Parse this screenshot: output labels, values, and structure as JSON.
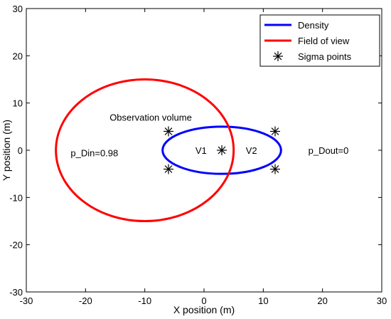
{
  "chart_data": {
    "type": "scatter",
    "title": "",
    "xlabel": "X position (m)",
    "ylabel": "Y position (m)",
    "xlim": [
      -30,
      30
    ],
    "ylim": [
      -30,
      30
    ],
    "xticks": [
      -30,
      -20,
      -10,
      0,
      10,
      20,
      30
    ],
    "yticks": [
      -30,
      -20,
      -10,
      0,
      10,
      20,
      30
    ],
    "grid": false,
    "legend_position": "top-right",
    "series": [
      {
        "name": "Density",
        "kind": "ellipse",
        "color": "#0000ff",
        "center": [
          3,
          0
        ],
        "radii": [
          10,
          5
        ]
      },
      {
        "name": "Field of view",
        "kind": "ellipse",
        "color": "#ff0000",
        "center": [
          -10,
          0
        ],
        "radii": [
          15,
          15
        ]
      },
      {
        "name": "Sigma points",
        "kind": "points",
        "color": "#000000",
        "marker": "asterisk",
        "points": [
          [
            -6,
            4
          ],
          [
            -6,
            -4
          ],
          [
            3,
            0
          ],
          [
            12,
            4
          ],
          [
            12,
            -4
          ]
        ]
      }
    ],
    "annotations": [
      {
        "text": "Observation volume",
        "x": -9,
        "y": 7
      },
      {
        "text": "p_Din=0.98",
        "x": -18.5,
        "y": -0.5
      },
      {
        "text": "V1",
        "x": -0.5,
        "y": 0
      },
      {
        "text": "V2",
        "x": 8,
        "y": 0
      },
      {
        "text": "p_Dout=0",
        "x": 21,
        "y": 0
      }
    ]
  }
}
